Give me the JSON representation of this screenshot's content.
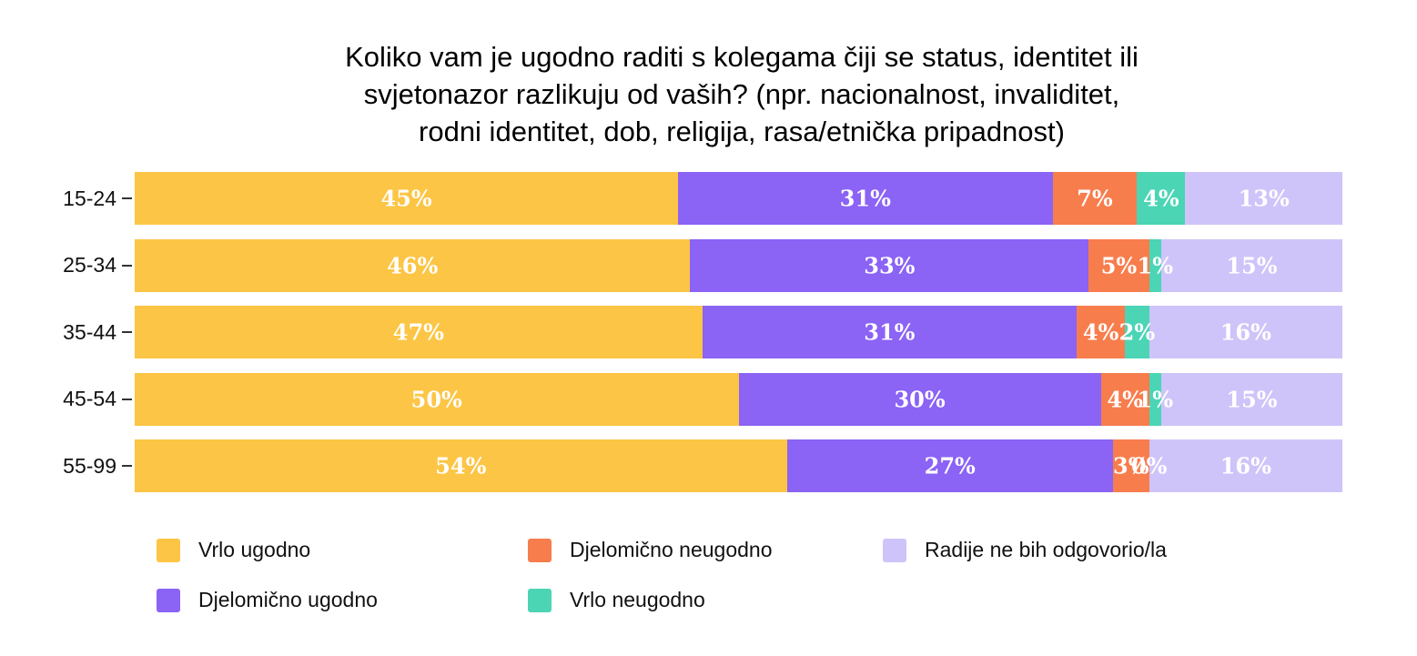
{
  "chart_data": {
    "type": "bar",
    "variant": "horizontal-stacked-100",
    "title": "Koliko vam je ugodno raditi s kolegama čiji se status, identitet ili svjetonazor razlikuju od vaših? (npr. nacionalnost, invaliditet, rodni identitet, dob, religija, rasa/etnička pripadnost)",
    "title_lines": [
      "Koliko vam je ugodno raditi s kolegama čiji se status, identitet ili",
      "svjetonazor razlikuju od vaših? (npr. nacionalnost, invaliditet,",
      "rodni identitet, dob, religija, rasa/etnička pripadnost)"
    ],
    "categories": [
      "15-24",
      "25-34",
      "35-44",
      "45-54",
      "55-99"
    ],
    "series": [
      {
        "name": "Vrlo ugodno",
        "color": "#FCC545",
        "values": [
          45,
          46,
          47,
          50,
          54
        ]
      },
      {
        "name": "Djelomično ugodno",
        "color": "#8B63F5",
        "values": [
          31,
          33,
          31,
          30,
          27
        ]
      },
      {
        "name": "Djelomično neugodno",
        "color": "#F87D4D",
        "values": [
          7,
          5,
          4,
          4,
          3
        ]
      },
      {
        "name": "Vrlo neugodno",
        "color": "#4BD5B5",
        "values": [
          4,
          1,
          2,
          1,
          0
        ]
      },
      {
        "name": "Radije ne bih odgovorio/la",
        "color": "#CFC4F9",
        "values": [
          13,
          15,
          16,
          15,
          16
        ]
      }
    ],
    "value_suffix": "%",
    "xlim": [
      0,
      100
    ],
    "grid": false,
    "legend_position": "bottom",
    "legend_column_order": [
      [
        "Vrlo ugodno",
        "Djelomično ugodno"
      ],
      [
        "Djelomično neugodno",
        "Vrlo neugodno"
      ],
      [
        "Radije ne bih odgovorio/la"
      ]
    ],
    "colors": {
      "background": "#FFFFFF",
      "title_text": "#000000",
      "axis_text": "#111111",
      "bar_label_text": "#FFFFFF"
    }
  }
}
